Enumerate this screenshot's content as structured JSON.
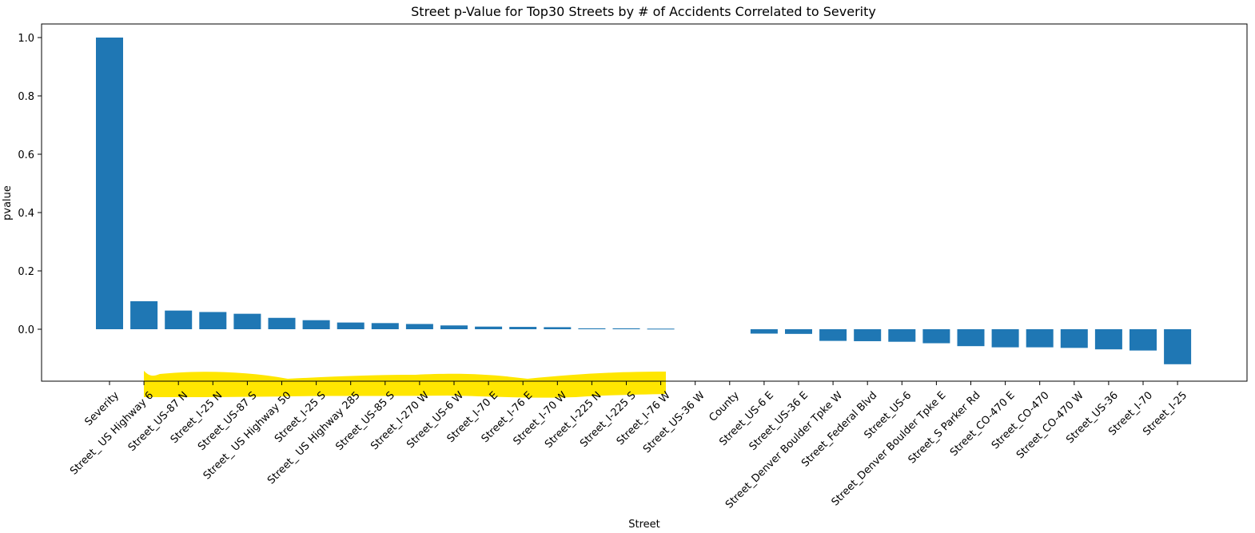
{
  "chart_data": {
    "type": "bar",
    "title": "Street p-Value for Top30 Streets by # of Accidents Correlated to Severity",
    "xlabel": "Street",
    "ylabel": "pvalue",
    "ylim": [
      -0.18,
      1.0
    ],
    "yticks": [
      0.0,
      0.2,
      0.4,
      0.6,
      0.8,
      1.0
    ],
    "ytick_labels": [
      "0.0",
      "0.2",
      "0.4",
      "0.6",
      "0.8",
      "1.0"
    ],
    "bar_color": "#1f77b4",
    "highlight_color": "#ffe600",
    "grid": false,
    "categories": [
      "Severity",
      "Street_ US Highway 6",
      "Street_US-87 N",
      "Street_I-25 N",
      "Street_US-87 S",
      "Street_ US Highway 50",
      "Street_I-25 S",
      "Street_ US Highway 285",
      "Street_US-85 S",
      "Street_I-270 W",
      "Street_US-6 W",
      "Street_I-70 E",
      "Street_I-76 E",
      "Street_I-70 W",
      "Street_I-225 N",
      "Street_I-225 S",
      "Street_I-76 W",
      "Street_US-36 W",
      "County",
      "Street_US-6 E",
      "Street_US-36 E",
      "Street_Denver Boulder Tpke W",
      "Street_Federal Blvd",
      "Street_US-6",
      "Street_Denver Boulder Tpke E",
      "Street_S Parker Rd",
      "Street_CO-470 E",
      "Street_CO-470",
      "Street_CO-470 W",
      "Street_US-36",
      "Street_I-70",
      "Street_I-25"
    ],
    "values": [
      1.0,
      0.096,
      0.064,
      0.059,
      0.053,
      0.039,
      0.031,
      0.023,
      0.021,
      0.018,
      0.013,
      0.009,
      0.008,
      0.007,
      0.003,
      0.003,
      0.002,
      0.0,
      0.0,
      -0.015,
      -0.016,
      -0.04,
      -0.041,
      -0.043,
      -0.048,
      -0.058,
      -0.062,
      -0.062,
      -0.064,
      -0.069,
      -0.073,
      -0.12
    ]
  }
}
